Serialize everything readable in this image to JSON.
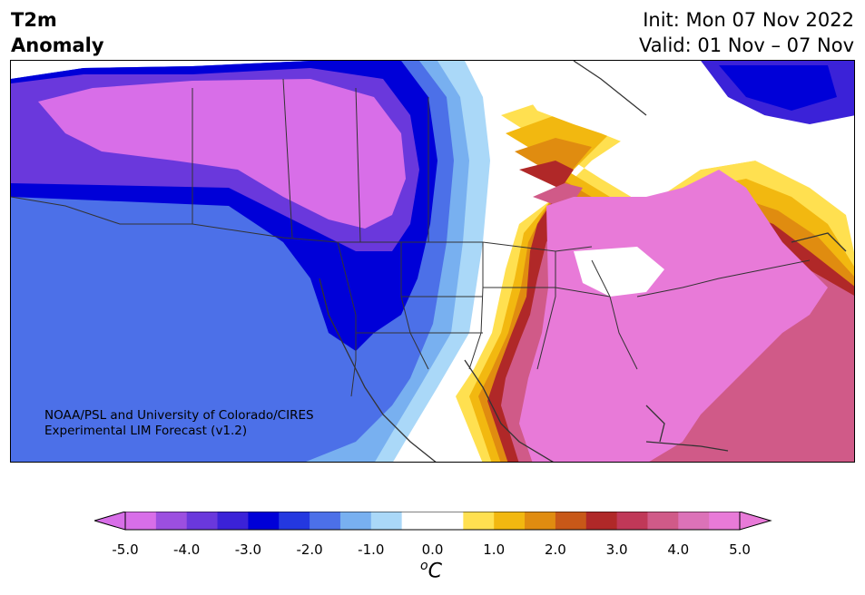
{
  "title": {
    "line1": "T2m",
    "line2": "Anomaly"
  },
  "init": {
    "line1": "Init: Mon 07 Nov 2022",
    "line2": "Valid: 01 Nov – 07 Nov"
  },
  "credit": {
    "line1": "NOAA/PSL and University of Colorado/CIRES",
    "line2": "Experimental LIM Forecast (v1.2)"
  },
  "colorbar": {
    "ticks": [
      "-5.0",
      "-4.0",
      "-3.0",
      "-2.0",
      "-1.0",
      "0.0",
      "1.0",
      "2.0",
      "3.0",
      "4.0",
      "5.0"
    ],
    "units_base": "C",
    "units_sup": "o",
    "under_color": "#d86ee8",
    "over_color": "#e87ad8",
    "colors": [
      "#d86ee8",
      "#9c4fe0",
      "#6a38dc",
      "#3b22d8",
      "#0000d8",
      "#2438e0",
      "#4c70e8",
      "#78b0f0",
      "#aad8f8",
      "#ffffff",
      "#ffffff",
      "#ffe050",
      "#f2b810",
      "#e08c10",
      "#c85818",
      "#b02828",
      "#c03858",
      "#d05a88",
      "#dc72b8",
      "#e87ad8"
    ]
  },
  "map": {
    "region": "North America",
    "palette": {
      "cold_strong": "#d86ee8",
      "cold_mid": "#3b22d8",
      "cold_weak": "#aad8f8",
      "warm_weak": "#ffe050",
      "warm_mid": "#c85818",
      "warm_strong": "#e87ad8",
      "border": "#333333"
    }
  }
}
